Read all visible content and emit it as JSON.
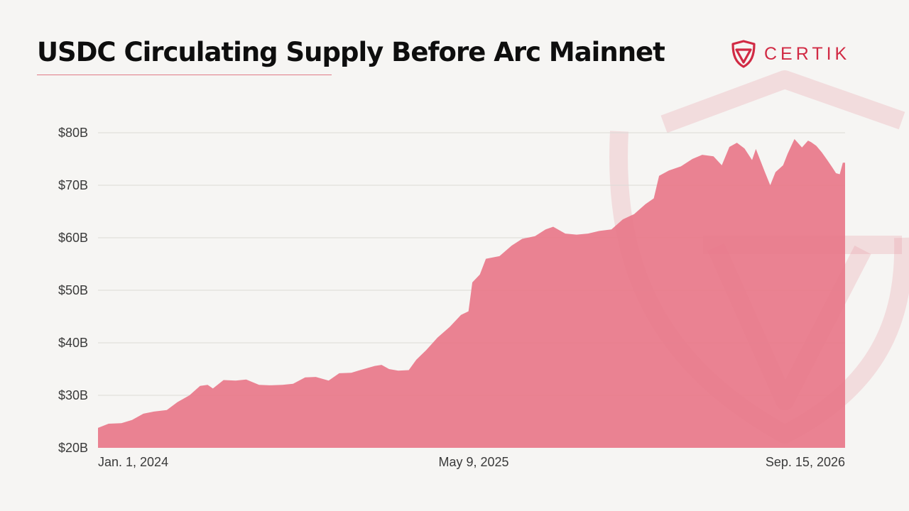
{
  "header": {
    "title": "USDC Circulating Supply Before Arc Mainnet",
    "brand_name": "CERTIK"
  },
  "colors": {
    "accent": "#d12a44",
    "area_fill": "#e8798a",
    "background": "#f6f5f3"
  },
  "chart_data": {
    "type": "area",
    "title": "USDC Circulating Supply Before Arc Mainnet",
    "xlabel": "",
    "ylabel": "",
    "y_ticks": [
      "$20B",
      "$30B",
      "$40B",
      "$50B",
      "$60B",
      "$70B",
      "$80B"
    ],
    "y_tick_values": [
      20,
      30,
      40,
      50,
      60,
      70,
      80
    ],
    "ylim": [
      20,
      80
    ],
    "x_ticks": [
      "Jan. 1, 2024",
      "May 9, 2025",
      "Sep. 15, 2026"
    ],
    "x_range": [
      "2024-01-01",
      "2026-09-15"
    ],
    "unit": "$B",
    "grid": true,
    "legend": "none",
    "series": [
      {
        "points": [
          [
            "2024-01-01",
            23.8
          ],
          [
            "2024-01-15",
            24.6
          ],
          [
            "2024-02-01",
            24.7
          ],
          [
            "2024-02-15",
            25.3
          ],
          [
            "2024-03-01",
            26.5
          ],
          [
            "2024-03-15",
            26.9
          ],
          [
            "2024-04-01",
            27.2
          ],
          [
            "2024-04-15",
            28.7
          ],
          [
            "2024-05-01",
            30.0
          ],
          [
            "2024-05-15",
            31.8
          ],
          [
            "2024-05-25",
            32.0
          ],
          [
            "2024-06-01",
            31.3
          ],
          [
            "2024-06-15",
            32.9
          ],
          [
            "2024-07-01",
            32.8
          ],
          [
            "2024-07-15",
            33.0
          ],
          [
            "2024-08-01",
            32.0
          ],
          [
            "2024-08-15",
            31.9
          ],
          [
            "2024-09-01",
            32.0
          ],
          [
            "2024-09-15",
            32.2
          ],
          [
            "2024-10-01",
            33.4
          ],
          [
            "2024-10-15",
            33.5
          ],
          [
            "2024-11-01",
            32.8
          ],
          [
            "2024-11-15",
            34.2
          ],
          [
            "2024-12-01",
            34.3
          ],
          [
            "2024-12-15",
            34.9
          ],
          [
            "2025-01-01",
            35.6
          ],
          [
            "2025-01-10",
            35.8
          ],
          [
            "2025-01-20",
            35.0
          ],
          [
            "2025-02-01",
            34.7
          ],
          [
            "2025-02-15",
            34.8
          ],
          [
            "2025-02-25",
            36.8
          ],
          [
            "2025-03-10",
            38.6
          ],
          [
            "2025-03-25",
            41.0
          ],
          [
            "2025-04-10",
            43.0
          ],
          [
            "2025-04-25",
            45.3
          ],
          [
            "2025-05-05",
            46.0
          ],
          [
            "2025-05-10",
            51.5
          ],
          [
            "2025-05-20",
            53.0
          ],
          [
            "2025-05-28",
            56.0
          ],
          [
            "2025-06-15",
            56.5
          ],
          [
            "2025-07-01",
            58.5
          ],
          [
            "2025-07-15",
            59.8
          ],
          [
            "2025-08-01",
            60.3
          ],
          [
            "2025-08-15",
            61.6
          ],
          [
            "2025-08-25",
            62.1
          ],
          [
            "2025-09-10",
            60.8
          ],
          [
            "2025-09-25",
            60.6
          ],
          [
            "2025-10-10",
            60.8
          ],
          [
            "2025-10-25",
            61.3
          ],
          [
            "2025-11-10",
            61.6
          ],
          [
            "2025-11-25",
            63.5
          ],
          [
            "2025-12-10",
            64.5
          ],
          [
            "2025-12-25",
            66.4
          ],
          [
            "2026-01-05",
            67.5
          ],
          [
            "2026-01-12",
            71.8
          ],
          [
            "2026-01-25",
            72.8
          ],
          [
            "2026-02-10",
            73.6
          ],
          [
            "2026-02-25",
            75.0
          ],
          [
            "2026-03-10",
            75.8
          ],
          [
            "2026-03-25",
            75.5
          ],
          [
            "2026-04-05",
            73.8
          ],
          [
            "2026-04-15",
            77.3
          ],
          [
            "2026-04-25",
            78.1
          ],
          [
            "2026-05-05",
            77.0
          ],
          [
            "2026-05-15",
            74.8
          ],
          [
            "2026-05-20",
            76.9
          ],
          [
            "2026-06-01",
            72.5
          ],
          [
            "2026-06-08",
            70.0
          ],
          [
            "2026-06-15",
            72.5
          ],
          [
            "2026-06-25",
            73.8
          ],
          [
            "2026-07-01",
            76.0
          ],
          [
            "2026-07-10",
            78.8
          ],
          [
            "2026-07-20",
            77.2
          ],
          [
            "2026-07-28",
            78.5
          ],
          [
            "2026-08-01",
            78.2
          ],
          [
            "2026-08-08",
            77.5
          ],
          [
            "2026-08-15",
            76.3
          ],
          [
            "2026-08-22",
            74.9
          ],
          [
            "2026-08-29",
            73.4
          ],
          [
            "2026-09-03",
            72.3
          ],
          [
            "2026-09-08",
            72.1
          ],
          [
            "2026-09-12",
            74.3
          ],
          [
            "2026-09-15",
            74.3
          ]
        ]
      }
    ]
  }
}
